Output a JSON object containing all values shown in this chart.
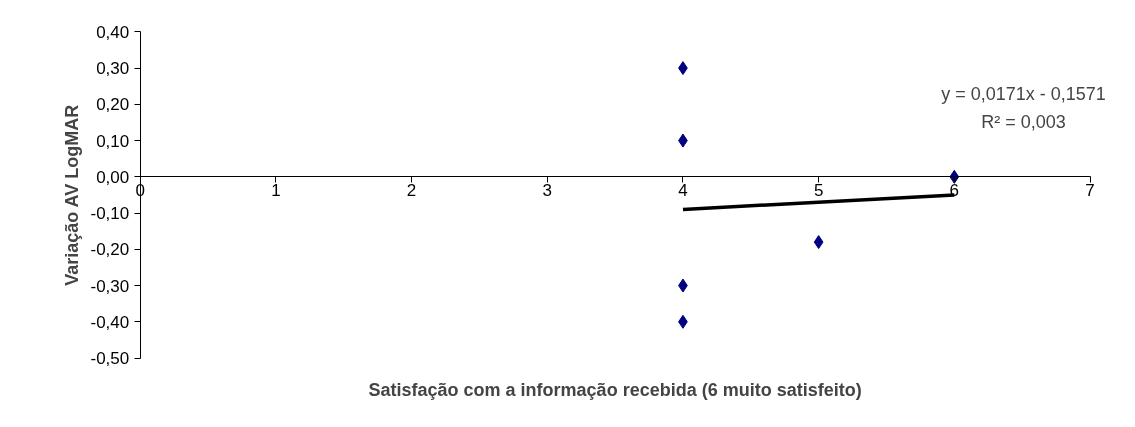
{
  "chart_data": {
    "type": "scatter",
    "xlabel": "Satisfação com a informação recebida (6 muito satisfeito)",
    "ylabel": "Variação AV LogMAR",
    "series": [
      {
        "color": "#000080",
        "x": [
          4,
          4,
          4,
          4,
          5,
          6
        ],
        "values": [
          0.3,
          0.1,
          -0.3,
          -0.4,
          -0.18,
          0.0
        ],
        "marker": "diamond"
      },
      {
        "type": "line",
        "color": "#000000",
        "x": [
          4,
          6
        ],
        "values": [
          -0.09,
          -0.05
        ],
        "line_style": "solid"
      }
    ],
    "xlim": [
      0,
      7
    ],
    "xticks": [
      0,
      1,
      2,
      3,
      4,
      5,
      6,
      7
    ],
    "ylim": [
      -0.5,
      0.4
    ],
    "yticks": [
      {
        "value": -0.5,
        "label": "-0,50"
      },
      {
        "value": -0.4,
        "label": "-0,40"
      },
      {
        "value": -0.3,
        "label": "-0,30"
      },
      {
        "value": -0.2,
        "label": "-0,20"
      },
      {
        "value": -0.1,
        "label": "-0,10"
      },
      {
        "value": 0,
        "label": "0,00"
      },
      {
        "value": 0.1,
        "label": "0,10"
      },
      {
        "value": 0.2,
        "label": "0,20"
      },
      {
        "value": 0.3,
        "label": "0,30"
      },
      {
        "value": 0.4,
        "label": "0,40"
      }
    ],
    "annotations": [
      "y = 0,0171x - 0,1571",
      "R² = 0,003"
    ],
    "grid": false
  }
}
